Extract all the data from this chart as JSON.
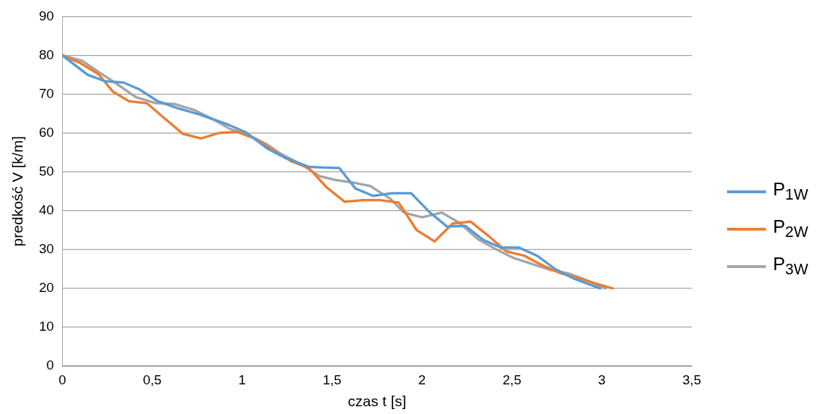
{
  "chart_data": {
    "type": "line",
    "xlabel": "czas t [s]",
    "ylabel": "predkość V [k/m]",
    "xlim": [
      0,
      3.5
    ],
    "xticks": [
      0,
      {
        "value": 0.5,
        "label": "0,5"
      },
      1,
      {
        "value": 1.5,
        "label": "1,5"
      },
      2,
      {
        "value": 2.5,
        "label": "2,5"
      },
      3,
      {
        "value": 3.5,
        "label": "3,5"
      }
    ],
    "ylim": [
      0,
      90
    ],
    "yticks": [
      0,
      10,
      20,
      30,
      40,
      50,
      60,
      70,
      80,
      90
    ],
    "grid": "y",
    "legend": "right",
    "marker": "none",
    "line_style": "solid",
    "series": [
      {
        "name": "P$_{1W}$",
        "color": "#5b9bd5",
        "x": [
          0,
          0.14,
          0.24,
          0.34,
          0.43,
          0.53,
          0.64,
          0.76,
          0.92,
          1.02,
          1.14,
          1.24,
          1.37,
          1.45,
          1.54,
          1.63,
          1.73,
          1.83,
          1.94,
          2.04,
          2.14,
          2.24,
          2.34,
          2.44,
          2.54,
          2.64,
          2.74,
          2.84,
          2.99
        ],
        "values": [
          80,
          75,
          73.3,
          73,
          71.2,
          68.2,
          66.4,
          64.8,
          62.2,
          60.2,
          56,
          53.6,
          51.3,
          51.1,
          51,
          45.7,
          43.8,
          44.5,
          44.5,
          39.7,
          35.9,
          36.1,
          32.5,
          30.5,
          30.5,
          28.4,
          25,
          22.6,
          20
        ]
      },
      {
        "name": "P$_{2W}$",
        "color": "#ed7d31",
        "x": [
          0,
          0.1,
          0.2,
          0.28,
          0.37,
          0.47,
          0.56,
          0.67,
          0.77,
          0.87,
          0.97,
          1.07,
          1.17,
          1.27,
          1.37,
          1.47,
          1.57,
          1.67,
          1.77,
          1.87,
          1.97,
          2.07,
          2.17,
          2.27,
          2.37,
          2.47,
          2.57,
          2.67,
          2.77,
          2.87,
          2.97,
          3.06
        ],
        "values": [
          80,
          78,
          75.2,
          70.7,
          68.2,
          67.7,
          64.1,
          59.8,
          58.6,
          60,
          60.3,
          58.6,
          55.6,
          52.8,
          51,
          46,
          42.3,
          42.7,
          42.7,
          42.1,
          35,
          32.1,
          36.7,
          37.2,
          33.5,
          29.5,
          28.4,
          25.9,
          23.9,
          22.6,
          21.2,
          20
        ]
      },
      {
        "name": "P$_{3W}$",
        "color": "#a5a5a5",
        "x": [
          0,
          0.11,
          0.2,
          0.31,
          0.41,
          0.52,
          0.62,
          0.73,
          0.84,
          0.93,
          1.03,
          1.13,
          1.22,
          1.33,
          1.43,
          1.52,
          1.62,
          1.71,
          1.82,
          1.9,
          2,
          2.11,
          2.21,
          2.31,
          2.41,
          2.51,
          2.61,
          2.71,
          2.81,
          2.91,
          3.02
        ],
        "values": [
          80,
          78.6,
          75.8,
          72.4,
          69.2,
          67.7,
          67.5,
          66,
          63.5,
          61.1,
          59.6,
          57.3,
          54.5,
          51.9,
          48.9,
          47.9,
          47.2,
          46.4,
          43.2,
          39.5,
          38.3,
          39.5,
          36.8,
          32.7,
          30.1,
          27.8,
          26.3,
          24.8,
          23.9,
          22.2,
          20
        ]
      }
    ]
  }
}
